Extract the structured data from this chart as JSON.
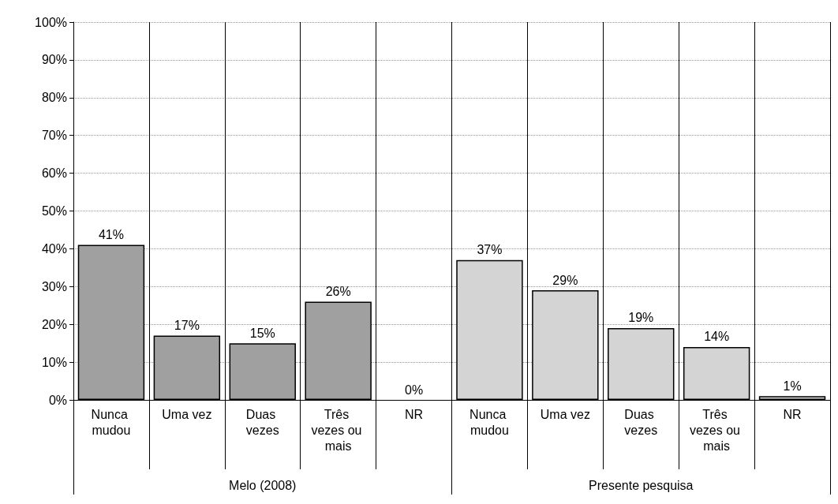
{
  "chart_data": {
    "type": "bar",
    "categories": [
      "Nunca mudou",
      "Uma vez",
      "Duas vezes",
      "Três vezes ou mais",
      "NR",
      "Nunca mudou",
      "Uma vez",
      "Duas vezes",
      "Três vezes ou mais",
      "NR"
    ],
    "series": [
      {
        "name": "Melo (2008)",
        "color": "#a0a0a0",
        "values": [
          41,
          17,
          15,
          26,
          0,
          null,
          null,
          null,
          null,
          null
        ],
        "value_labels": [
          "41%",
          "17%",
          "15%",
          "26%",
          "0%",
          null,
          null,
          null,
          null,
          null
        ]
      },
      {
        "name": "Presente pesquisa",
        "color": "#d4d4d4",
        "values": [
          null,
          null,
          null,
          null,
          null,
          37,
          29,
          19,
          14,
          1
        ],
        "value_labels": [
          null,
          null,
          null,
          null,
          null,
          "37%",
          "29%",
          "19%",
          "14%",
          "1%"
        ]
      }
    ],
    "ylim": [
      0,
      100
    ],
    "yticks": [
      {
        "value": 0,
        "label": "0%"
      },
      {
        "value": 10,
        "label": "10%"
      },
      {
        "value": 20,
        "label": "20%"
      },
      {
        "value": 30,
        "label": "30%"
      },
      {
        "value": 40,
        "label": "40%"
      },
      {
        "value": 50,
        "label": "50%"
      },
      {
        "value": 60,
        "label": "60%"
      },
      {
        "value": 70,
        "label": "70%"
      },
      {
        "value": 80,
        "label": "80%"
      },
      {
        "value": 90,
        "label": "90%"
      },
      {
        "value": 100,
        "label": "100%"
      }
    ],
    "grid": true,
    "legend": false
  }
}
